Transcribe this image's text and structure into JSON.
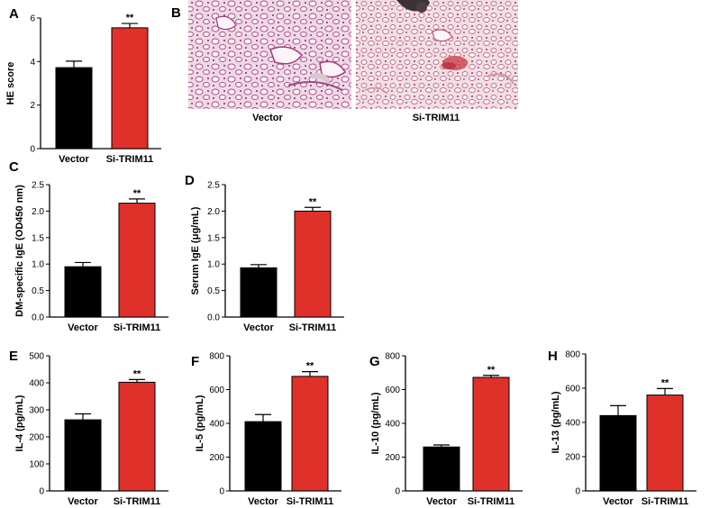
{
  "figure": {
    "panel_b": {
      "letter": "B",
      "captions": [
        "Vector",
        "Si-TRIM11"
      ]
    }
  },
  "chart_data": [
    {
      "panel": "A",
      "type": "bar",
      "categories": [
        "Vector",
        "Si-TRIM11"
      ],
      "values": [
        3.72,
        5.55
      ],
      "errors": [
        0.3,
        0.2
      ],
      "ylabel": "HE score",
      "ylim": [
        0,
        6
      ],
      "yticks": [
        0,
        2,
        4,
        6
      ],
      "significance": [
        "",
        "**"
      ],
      "colors": [
        "#000000",
        "#e0302a"
      ]
    },
    {
      "panel": "C",
      "type": "bar",
      "categories": [
        "Vector",
        "Si-TRIM11"
      ],
      "values": [
        0.95,
        2.15
      ],
      "errors": [
        0.08,
        0.08
      ],
      "ylabel": "DM-specific IgE (OD450 nm)",
      "ylim": [
        0,
        2.5
      ],
      "yticks": [
        "0.0",
        "0.5",
        "1.0",
        "1.5",
        "2.0",
        "2.5"
      ],
      "significance": [
        "",
        "**"
      ],
      "colors": [
        "#000000",
        "#e0302a"
      ]
    },
    {
      "panel": "D",
      "type": "bar",
      "categories": [
        "Vector",
        "Si-TRIM11"
      ],
      "values": [
        0.93,
        2.0
      ],
      "errors": [
        0.06,
        0.07
      ],
      "ylabel": "Serum IgE (μg/mL)",
      "ylim": [
        0,
        2.5
      ],
      "yticks": [
        "0.0",
        "0.5",
        "1.0",
        "1.5",
        "2.0",
        "2.5"
      ],
      "significance": [
        "",
        "**"
      ],
      "colors": [
        "#000000",
        "#e0302a"
      ]
    },
    {
      "panel": "E",
      "type": "bar",
      "categories": [
        "Vector",
        "Si-TRIM11"
      ],
      "values": [
        263,
        402
      ],
      "errors": [
        22,
        10
      ],
      "ylabel": "IL-4 (pg/mL)",
      "ylim": [
        0,
        500
      ],
      "yticks": [
        0,
        100,
        200,
        300,
        400,
        500
      ],
      "significance": [
        "",
        "**"
      ],
      "colors": [
        "#000000",
        "#e0302a"
      ]
    },
    {
      "panel": "F",
      "type": "bar",
      "categories": [
        "Vector",
        "Si-TRIM11"
      ],
      "values": [
        410,
        678
      ],
      "errors": [
        42,
        28
      ],
      "ylabel": "IL-5 (pg/mL)",
      "ylim": [
        0,
        800
      ],
      "yticks": [
        0,
        200,
        400,
        600,
        800
      ],
      "significance": [
        "",
        "**"
      ],
      "colors": [
        "#000000",
        "#e0302a"
      ]
    },
    {
      "panel": "G",
      "type": "bar",
      "categories": [
        "Vector",
        "Si-TRIM11"
      ],
      "values": [
        260,
        672
      ],
      "errors": [
        12,
        12
      ],
      "ylabel": "IL-10 (pg/mL)",
      "ylim": [
        0,
        800
      ],
      "yticks": [
        0,
        200,
        400,
        600,
        800
      ],
      "significance": [
        "",
        "**"
      ],
      "colors": [
        "#000000",
        "#e0302a"
      ]
    },
    {
      "panel": "H",
      "type": "bar",
      "categories": [
        "Vector",
        "Si-TRIM11"
      ],
      "values": [
        440,
        560
      ],
      "errors": [
        58,
        38
      ],
      "ylabel": "IL-13 (pg/mL)",
      "ylim": [
        0,
        800
      ],
      "yticks": [
        0,
        200,
        400,
        600,
        800
      ],
      "significance": [
        "",
        "**"
      ],
      "colors": [
        "#000000",
        "#e0302a"
      ]
    }
  ]
}
